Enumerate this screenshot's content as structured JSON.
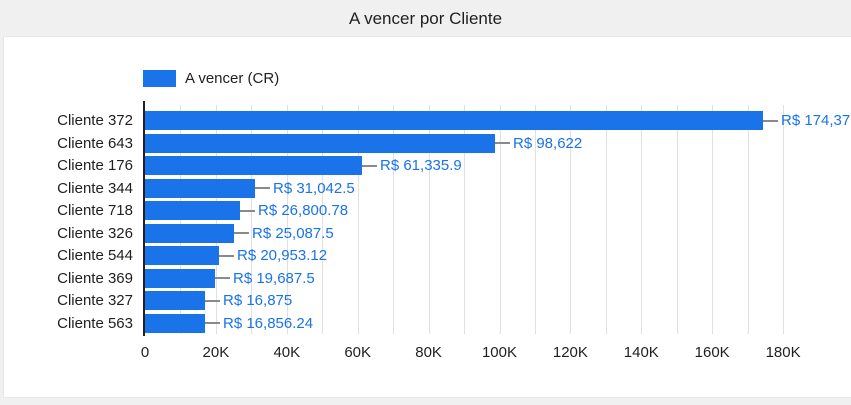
{
  "title": "A vencer por Cliente",
  "legend": {
    "label": "A vencer (CR)"
  },
  "colors": {
    "bar": "#1a73e8",
    "value_label": "#1a73e8",
    "category_label": "#1f1f1f",
    "tick_label": "#1f1f1f",
    "grid_line": "#e0e0e0",
    "axis_line": "#212121",
    "leader_line": "#8a8a8a",
    "page_background": "#f0f0f0",
    "card_background": "#ffffff",
    "card_border": "#e7e7e7"
  },
  "chart_data": {
    "type": "bar",
    "orientation": "horizontal",
    "title": "A vencer por Cliente",
    "series_name": "A vencer (CR)",
    "legend_position": "top-left",
    "categories": [
      "Cliente 372",
      "Cliente 643",
      "Cliente 176",
      "Cliente 344",
      "Cliente 718",
      "Cliente 326",
      "Cliente 544",
      "Cliente 369",
      "Cliente 327",
      "Cliente 563"
    ],
    "values": [
      174375,
      98622,
      61335.9,
      31042.5,
      26800.78,
      25087.5,
      20953.12,
      19687.5,
      16875,
      16856.24
    ],
    "value_labels": [
      "R$ 174,37",
      "R$ 98,622",
      "R$ 61,335.9",
      "R$ 31,042.5",
      "R$ 26,800.78",
      "R$ 25,087.5",
      "R$ 20,953.12",
      "R$ 19,687.5",
      "R$ 16,875",
      "R$ 16,856.24"
    ],
    "first_value_label_clipped_at_right_edge": true,
    "xlabel": "",
    "ylabel": "",
    "x_ticks": [
      "0",
      "20K",
      "40K",
      "60K",
      "80K",
      "100K",
      "120K",
      "140K",
      "160K",
      "180K"
    ],
    "x_range": [
      0,
      180000
    ],
    "minor_gridline_step": 10000,
    "grid": true
  }
}
